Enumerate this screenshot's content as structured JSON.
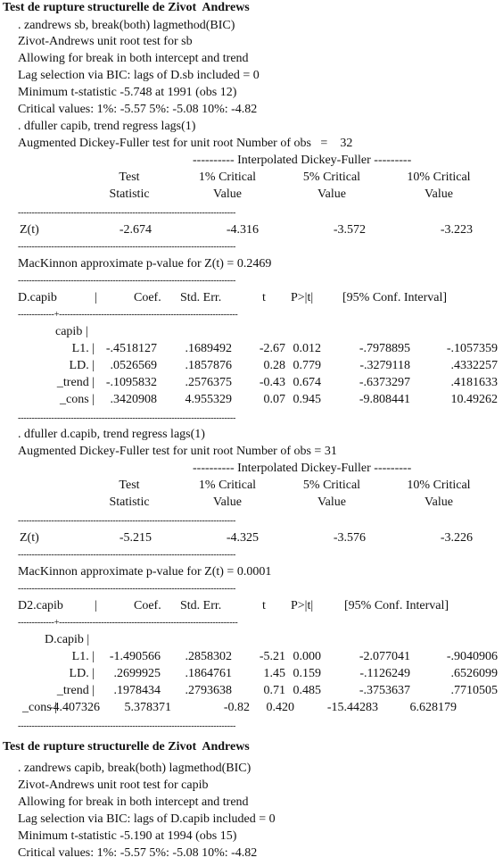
{
  "section1": {
    "heading": "Test de rupture structurelle de Zivot  Andrews",
    "lines": [
      ". zandrews sb, break(both) lagmethod(BIC)",
      "Zivot-Andrews unit root test for sb",
      "Allowing for break in both intercept and trend",
      "Lag selection via BIC: lags of D.sb included = 0",
      "Minimum t-statistic -5.748 at 1991 (obs 12)",
      "Critical values: 1%: -5.57 5%: -5.08 10%: -4.82"
    ]
  },
  "adf1": {
    "cmd": ". dfuller capib, trend regress lags(1)",
    "title": "Augmented Dickey-Fuller test for unit root Number of obs   =    32",
    "interp_header": "---------- Interpolated Dickey-Fuller ---------",
    "col_test": [
      "Test",
      "Statistic"
    ],
    "col_1": [
      "1% Critical",
      "Value"
    ],
    "col_5": [
      "5% Critical",
      "Value"
    ],
    "col_10": [
      "10% Critical",
      "Value"
    ],
    "dashes": "------------------------------------------------------------------------------",
    "z_label": "Z(t)",
    "z_values": [
      "-2.674",
      "-4.316",
      "-3.572",
      "-3.223"
    ],
    "mackinnon": "MacKinnon approximate p-value for Z(t) = 0.2469",
    "reg_headers": [
      "D.capib",
      "|",
      "Coef.",
      "Std. Err.",
      "t",
      "P>|t|",
      "[95% Conf. Interval]"
    ],
    "sep": "-------------+----------------------------------------------------------------",
    "group_label": "capib |",
    "rows": [
      {
        "name": "L1. |",
        "vals": [
          "-.4518127",
          ".1689492",
          "-2.67",
          "0.012",
          "-.7978895",
          "-.1057359"
        ]
      },
      {
        "name": "LD. |",
        "vals": [
          ".0526569",
          ".1857876",
          "0.28",
          "0.779",
          "-.3279118",
          ".4332257"
        ]
      },
      {
        "name": "_trend |",
        "vals": [
          "-.1095832",
          ".2576375",
          "-0.43",
          "0.674",
          "-.6373297",
          ".4181633"
        ]
      },
      {
        "name": "_cons |",
        "vals": [
          ".3420908",
          "4.955329",
          "0.07",
          "0.945",
          "-9.808441",
          "10.49262"
        ]
      }
    ]
  },
  "adf2": {
    "cmd": ". dfuller d.capib, trend regress lags(1)",
    "title": "Augmented Dickey-Fuller test for unit root Number of obs = 31",
    "interp_header": "---------- Interpolated Dickey-Fuller ---------",
    "col_test": [
      "Test",
      "Statistic"
    ],
    "col_1": [
      "1% Critical",
      "Value"
    ],
    "col_5": [
      "5% Critical",
      "Value"
    ],
    "col_10": [
      "10% Critical",
      "Value"
    ],
    "dashes": "------------------------------------------------------------------------------",
    "z_label": "Z(t)",
    "z_values": [
      "-5.215",
      "-4.325",
      "-3.576",
      "-3.226"
    ],
    "mackinnon": "MacKinnon approximate p-value for Z(t) = 0.0001",
    "reg_headers": [
      "D2.capib",
      "|",
      "Coef.",
      "Std. Err.",
      "t",
      "P>|t|",
      "[95% Conf. Interval]"
    ],
    "sep": "-------------+----------------------------------------------------------------",
    "group_label": "D.capib |",
    "rows": [
      {
        "name": "L1. |",
        "vals": [
          "-1.490566",
          ".2858302",
          "-5.21",
          "0.000",
          "-2.077041",
          "-.9040906"
        ]
      },
      {
        "name": "LD. |",
        "vals": [
          ".2699925",
          ".1864761",
          "1.45",
          "0.159",
          "-.1126249",
          ".6526099"
        ]
      },
      {
        "name": "_trend |",
        "vals": [
          ".1978434",
          ".2793638",
          "0.71",
          "0.485",
          "-.3753637",
          ".7710505"
        ]
      },
      {
        "name": "_cons |",
        "vals": [
          "-4.407326",
          "5.378371",
          "-0.82",
          "0.420",
          "-15.44283",
          "6.628179"
        ]
      }
    ]
  },
  "section2": {
    "heading": "Test de rupture structurelle de Zivot  Andrews",
    "lines": [
      ". zandrews capib, break(both) lagmethod(BIC)",
      "Zivot-Andrews unit root test for capib",
      "Allowing for break in both intercept and trend",
      "Lag selection via BIC: lags of D.capib included = 0",
      "Minimum t-statistic -5.190 at 1994 (obs 15)",
      "Critical values: 1%: -5.57 5%: -5.08 10%: -4.82"
    ]
  }
}
